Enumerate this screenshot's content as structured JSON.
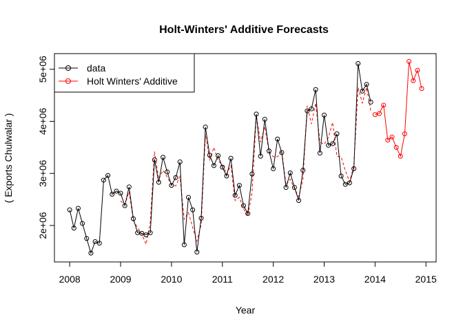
{
  "chart_data": {
    "type": "line",
    "title": "Holt-Winters' Additive Forecasts",
    "xlabel": "Year",
    "ylabel": "( Exports Chulwalar )",
    "xlim": [
      2007.7,
      2015.2
    ],
    "ylim": [
      1300000,
      5300000
    ],
    "x_ticks": [
      2008,
      2009,
      2010,
      2011,
      2012,
      2013,
      2014,
      2015
    ],
    "x_tick_labels": [
      "2008",
      "2009",
      "2010",
      "2011",
      "2012",
      "2013",
      "2014",
      "2015"
    ],
    "y_ticks": [
      2000000,
      3000000,
      4000000,
      5000000
    ],
    "y_tick_labels": [
      "2e+06",
      "3e+06",
      "4e+06",
      "5e+06"
    ],
    "grid": false,
    "legend": {
      "position": "top-left",
      "entries": [
        "data",
        "Holt Winters' Additive"
      ]
    },
    "colors": {
      "data": "#000000",
      "forecast": "#ff0000",
      "fitted": "#ff0000"
    },
    "series": [
      {
        "name": "data",
        "style": "line-with-points",
        "start": 2008,
        "step": 0.0833333,
        "values": [
          2300000,
          1950000,
          2330000,
          2040000,
          1750000,
          1470000,
          1690000,
          1660000,
          2870000,
          2960000,
          2600000,
          2660000,
          2620000,
          2380000,
          2740000,
          2130000,
          1860000,
          1850000,
          1820000,
          1860000,
          3260000,
          2830000,
          3310000,
          3030000,
          2770000,
          2920000,
          3220000,
          1630000,
          2540000,
          2300000,
          1490000,
          2140000,
          3890000,
          3350000,
          3150000,
          3340000,
          3120000,
          2950000,
          3290000,
          2580000,
          2770000,
          2380000,
          2230000,
          2990000,
          4140000,
          3330000,
          4040000,
          3430000,
          3090000,
          3660000,
          3400000,
          2730000,
          3010000,
          2730000,
          2480000,
          3060000,
          4200000,
          4240000,
          4610000,
          3390000,
          4120000,
          3540000,
          3570000,
          3760000,
          2950000,
          2790000,
          2820000,
          3090000,
          5110000,
          4580000,
          4710000,
          4370000
        ]
      },
      {
        "name": "Holt Winters' Additive",
        "style": "line-with-points",
        "start": 2014,
        "step": 0.0833333,
        "values": [
          4130000,
          4150000,
          4310000,
          3640000,
          3700000,
          3500000,
          3330000,
          3760000,
          5150000,
          4780000,
          4980000,
          4630000
        ]
      },
      {
        "style": "dashed-line",
        "start": 2009,
        "step": 0.0833333,
        "values": [
          2470000,
          2400000,
          2650000,
          2100000,
          1960000,
          1840000,
          1640000,
          2060000,
          3420000,
          2890000,
          3060000,
          2930000,
          2780000,
          2760000,
          2940000,
          2120000,
          2250000,
          1960000,
          1700000,
          2020000,
          3750000,
          3250000,
          3500000,
          3240000,
          3170000,
          2990000,
          3150000,
          2480000,
          2540000,
          2320000,
          2180000,
          2630000,
          4110000,
          3600000,
          3900000,
          3420000,
          3320000,
          3320000,
          3430000,
          2780000,
          2890000,
          2710000,
          2550000,
          2890000,
          4300000,
          3950000,
          4350000,
          3600000,
          3560000,
          3690000,
          3980000,
          3330000,
          3320000,
          3050000,
          2840000,
          3150000,
          4650000,
          4350000,
          4650000,
          4200000
        ]
      }
    ]
  }
}
